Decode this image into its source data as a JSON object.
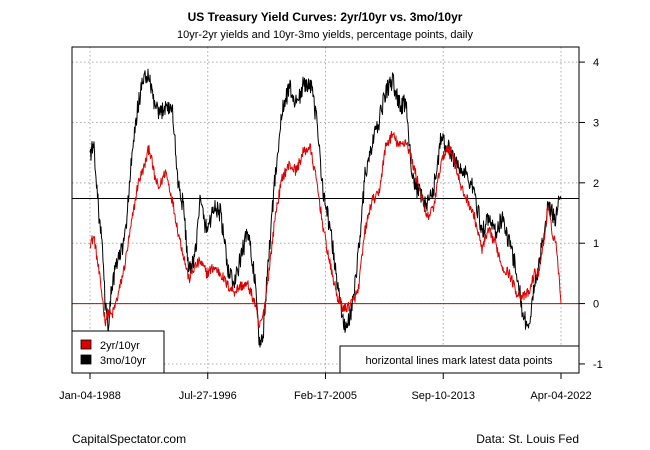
{
  "chart_data": {
    "type": "line",
    "title": "US Treasury Yield Curves: 2yr/10yr vs. 3mo/10yr",
    "subtitle": "10yr-2yr yields and 10yr-3mo yields, percentage points, daily",
    "x_ticks": [
      "Jan-04-1988",
      "Jul-27-1996",
      "Feb-17-2005",
      "Sep-10-2013",
      "Apr-04-2022"
    ],
    "xlim": [
      1988.0,
      2022.26
    ],
    "ylim": [
      -1.15,
      4.25
    ],
    "y_ticks": [
      -1,
      0,
      1,
      2,
      3,
      4
    ],
    "grid": true,
    "legend_position": "bottom-left",
    "legend": [
      "2yr/10yr",
      "3mo/10yr"
    ],
    "annotation": "horizontal lines mark latest data points",
    "hlines": [
      {
        "value": 1.74,
        "color": "#000000",
        "series": "3mo/10yr"
      },
      {
        "value": 0.0,
        "color": "#dd0000",
        "series": "2yr/10yr"
      }
    ],
    "series": [
      {
        "name": "2yr/10yr",
        "color": "#dd0000",
        "x": [
          1988.0,
          1988.3,
          1988.6,
          1988.9,
          1989.1,
          1989.3,
          1989.6,
          1990.0,
          1990.5,
          1991.0,
          1991.5,
          1992.0,
          1992.3,
          1992.7,
          1993.0,
          1993.5,
          1994.0,
          1994.4,
          1994.8,
          1995.2,
          1995.6,
          1996.0,
          1996.5,
          1997.0,
          1997.5,
          1998.0,
          1998.5,
          1999.0,
          1999.5,
          2000.0,
          2000.3,
          2000.6,
          2001.0,
          2001.5,
          2002.0,
          2002.5,
          2003.0,
          2003.5,
          2004.0,
          2004.5,
          2005.0,
          2005.5,
          2006.0,
          2006.5,
          2007.0,
          2007.5,
          2008.0,
          2008.5,
          2009.0,
          2009.5,
          2010.0,
          2010.5,
          2011.0,
          2011.5,
          2012.0,
          2012.5,
          2013.0,
          2013.5,
          2014.0,
          2014.5,
          2015.0,
          2015.5,
          2016.0,
          2016.5,
          2017.0,
          2017.5,
          2018.0,
          2018.5,
          2019.0,
          2019.5,
          2020.0,
          2020.3,
          2020.6,
          2021.0,
          2021.3,
          2021.6,
          2021.9,
          2022.1,
          2022.26
        ],
        "y": [
          1.0,
          1.1,
          0.6,
          0.1,
          -0.3,
          -0.15,
          -0.2,
          0.1,
          0.6,
          1.3,
          2.0,
          2.3,
          2.6,
          2.1,
          1.9,
          2.2,
          1.7,
          1.2,
          0.8,
          0.4,
          0.6,
          0.7,
          0.5,
          0.6,
          0.5,
          0.3,
          0.2,
          0.3,
          0.3,
          0.0,
          -0.4,
          -0.2,
          0.5,
          1.5,
          2.1,
          2.3,
          2.2,
          2.5,
          2.6,
          2.0,
          1.2,
          0.6,
          0.1,
          -0.1,
          0.0,
          0.2,
          1.2,
          1.7,
          1.8,
          2.6,
          2.8,
          2.6,
          2.7,
          2.3,
          1.9,
          1.4,
          1.6,
          2.3,
          2.6,
          2.4,
          1.9,
          1.7,
          1.4,
          0.9,
          1.2,
          1.0,
          0.6,
          0.5,
          0.2,
          0.1,
          0.2,
          0.5,
          0.5,
          1.0,
          1.6,
          1.2,
          1.0,
          0.5,
          0.0
        ]
      },
      {
        "name": "3mo/10yr",
        "color": "#000000",
        "x": [
          1988.0,
          1988.3,
          1988.6,
          1988.9,
          1989.1,
          1989.3,
          1989.6,
          1990.0,
          1990.5,
          1991.0,
          1991.5,
          1992.0,
          1992.3,
          1992.7,
          1993.0,
          1993.5,
          1994.0,
          1994.4,
          1994.8,
          1995.2,
          1995.6,
          1996.0,
          1996.5,
          1997.0,
          1997.5,
          1998.0,
          1998.5,
          1999.0,
          1999.5,
          2000.0,
          2000.3,
          2000.6,
          2001.0,
          2001.5,
          2002.0,
          2002.5,
          2003.0,
          2003.5,
          2004.0,
          2004.5,
          2005.0,
          2005.5,
          2006.0,
          2006.5,
          2007.0,
          2007.5,
          2008.0,
          2008.5,
          2009.0,
          2009.5,
          2010.0,
          2010.5,
          2011.0,
          2011.5,
          2012.0,
          2012.5,
          2013.0,
          2013.5,
          2014.0,
          2014.5,
          2015.0,
          2015.5,
          2016.0,
          2016.5,
          2017.0,
          2017.5,
          2018.0,
          2018.5,
          2019.0,
          2019.5,
          2020.0,
          2020.3,
          2020.6,
          2021.0,
          2021.3,
          2021.6,
          2021.9,
          2022.1,
          2022.26
        ],
        "y": [
          2.5,
          2.6,
          1.6,
          0.9,
          0.0,
          -0.4,
          0.3,
          0.7,
          1.0,
          2.3,
          3.3,
          3.8,
          3.7,
          3.3,
          3.1,
          3.3,
          3.2,
          2.0,
          1.6,
          0.5,
          0.7,
          1.7,
          1.2,
          1.6,
          1.5,
          0.6,
          0.3,
          0.8,
          1.2,
          0.4,
          -0.7,
          -0.5,
          0.8,
          2.2,
          3.2,
          3.6,
          3.3,
          3.6,
          3.7,
          3.0,
          1.8,
          1.2,
          0.3,
          -0.4,
          -0.2,
          0.8,
          2.1,
          2.6,
          3.0,
          3.5,
          3.7,
          3.3,
          3.3,
          2.0,
          1.8,
          1.6,
          1.9,
          2.7,
          2.6,
          2.4,
          2.2,
          2.1,
          1.8,
          1.2,
          1.4,
          1.2,
          1.4,
          1.0,
          0.6,
          -0.2,
          -0.4,
          0.3,
          0.6,
          1.1,
          1.6,
          1.5,
          1.4,
          1.8,
          1.74
        ]
      }
    ]
  },
  "footer": {
    "left": "CapitalSpectator.com",
    "right": "Data: St. Louis Fed"
  }
}
